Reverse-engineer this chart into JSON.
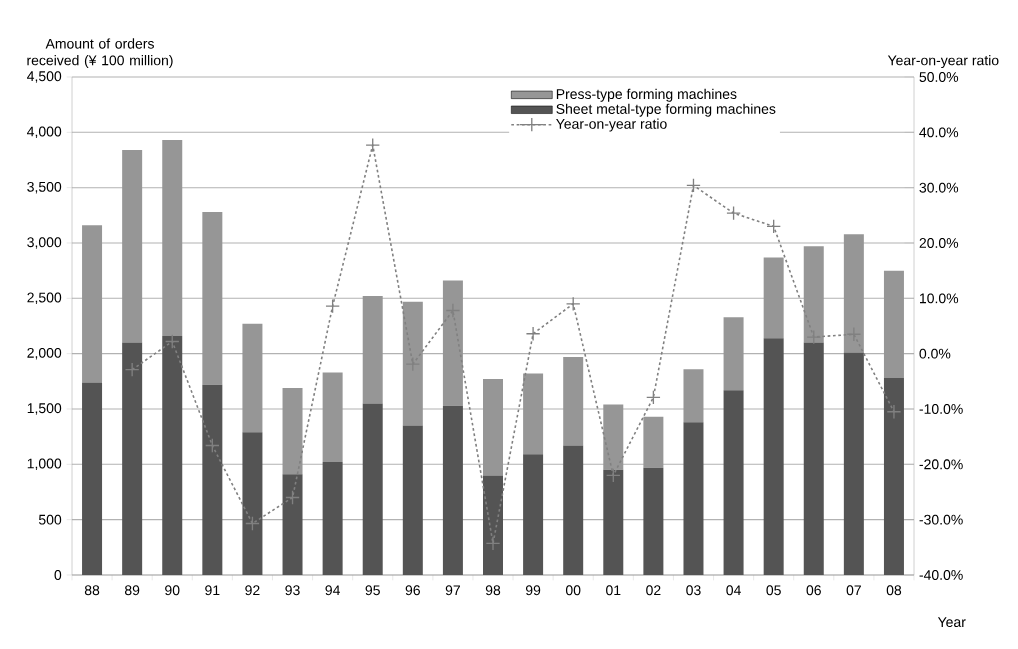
{
  "chart_data": {
    "type": "bar",
    "stacked": true,
    "categories": [
      "88",
      "89",
      "90",
      "91",
      "92",
      "93",
      "94",
      "95",
      "96",
      "97",
      "98",
      "99",
      "00",
      "01",
      "02",
      "03",
      "04",
      "05",
      "06",
      "07",
      "08"
    ],
    "series": [
      {
        "name": "Sheet metal-type forming machines",
        "color": "#545454",
        "values": [
          1740,
          2100,
          2160,
          1720,
          1290,
          910,
          1020,
          1550,
          1350,
          1530,
          900,
          1090,
          1170,
          950,
          970,
          1380,
          1670,
          2140,
          2100,
          2010,
          1780
        ]
      },
      {
        "name": "Press-type forming machines",
        "color": "#969696",
        "values": [
          1420,
          1740,
          1770,
          1560,
          980,
          780,
          810,
          970,
          1120,
          1130,
          870,
          730,
          800,
          590,
          460,
          480,
          660,
          730,
          870,
          1070,
          970
        ]
      },
      {
        "name": "Year-on-year ratio",
        "type": "line",
        "axis": "y2",
        "color": "#808080",
        "marker": "cross",
        "line_style": "dotted",
        "values": [
          null,
          -2.9,
          2.2,
          -16.6,
          -30.7,
          -26.0,
          8.6,
          37.7,
          -1.9,
          7.8,
          -34.3,
          3.6,
          9.0,
          -22.0,
          -7.9,
          30.4,
          25.4,
          23.0,
          3.0,
          3.5,
          -10.5
        ]
      }
    ],
    "ylim": [
      0,
      4500
    ],
    "yticks": [
      0,
      {
        "value": 500,
        "label": "500"
      },
      {
        "value": 1000,
        "label": "1,000"
      },
      {
        "value": 1500,
        "label": "1,500"
      },
      {
        "value": 2000,
        "label": "2,000"
      },
      {
        "value": 2500,
        "label": "2,500"
      },
      {
        "value": 3000,
        "label": "3,000"
      },
      {
        "value": 3500,
        "label": "3,500"
      },
      {
        "value": 4000,
        "label": "4,000"
      },
      {
        "value": 4500,
        "label": "4,500"
      }
    ],
    "y2lim": [
      -40,
      50
    ],
    "y2ticks": [
      {
        "value": -40,
        "label": "-40.0%"
      },
      {
        "value": -30,
        "label": "-30.0%"
      },
      {
        "value": -20,
        "label": "-20.0%"
      },
      {
        "value": -10,
        "label": "-10.0%"
      },
      {
        "value": 0,
        "label": "0.0%"
      },
      {
        "value": 10,
        "label": "10.0%"
      },
      {
        "value": 20,
        "label": "20.0%"
      },
      {
        "value": 30,
        "label": "30.0%"
      },
      {
        "value": 40,
        "label": "40.0%"
      },
      {
        "value": 50,
        "label": "50.0%"
      }
    ],
    "ylabel": "Amount of orders received (¥ 100 million)",
    "y2label": "Year-on-year ratio",
    "xlabel": "Year",
    "grid": "y",
    "legend": "top"
  }
}
